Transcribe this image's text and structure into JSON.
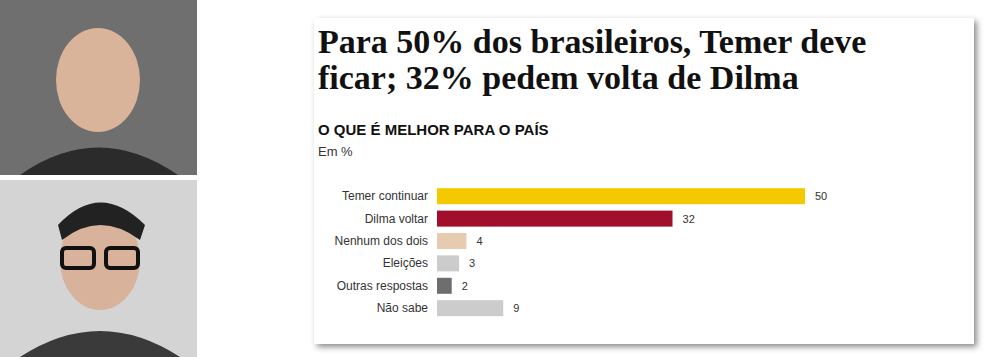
{
  "chart_data": {
    "type": "bar",
    "orientation": "horizontal",
    "title": "Para 50% dos brasileiros, Temer deve ficar; 32% pedem volta de Dilma",
    "subtitle": "O QUE É MELHOR PARA O PAÍS",
    "annotations": [
      "Em %"
    ],
    "categories": [
      "Temer continuar",
      "Dilma voltar",
      "Nenhum dos dois",
      "Eleições",
      "Outras respostas",
      "Não sabe"
    ],
    "values": [
      50,
      32,
      4,
      3,
      2,
      9
    ],
    "colors": [
      "#f5c900",
      "#a10f2b",
      "#e6cbb0",
      "#cccccc",
      "#6e6e6e",
      "#cccccc"
    ],
    "xlim": [
      0,
      50
    ],
    "tick_labels": "y",
    "data_labels": true,
    "grid": false
  }
}
